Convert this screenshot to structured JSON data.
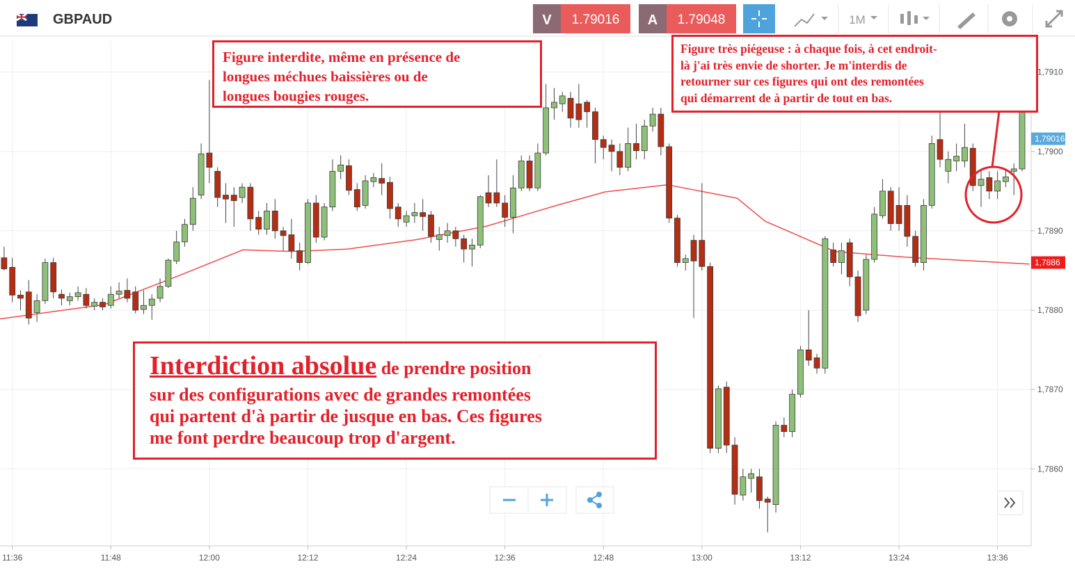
{
  "header": {
    "symbol": "GBPAUD",
    "sell_label": "V",
    "sell_price": "1.79016",
    "buy_label": "A",
    "buy_price": "1.79048",
    "timeframe": "1M"
  },
  "annotations": {
    "top_left": [
      "Figure interdite, même en présence de",
      "longues méchues baissières ou de",
      "longues bougies rouges."
    ],
    "top_right": [
      "Figure très piégeuse : à chaque fois, à cet endroit-",
      "là j'ai très envie de shorter. Je m'interdis de",
      "retourner sur ces figures qui ont des remontées",
      "qui démarrent de à partir de tout  en  bas."
    ],
    "bottom": {
      "emphasis": "Interdiction absolue",
      "lines": [
        "de prendre position",
        "sur des configurations avec de grandes remontées",
        "qui partent d'à partir de jusque en bas. Ces figures",
        "me font perdre beaucoup trop d'argent."
      ]
    }
  },
  "chart_data": {
    "type": "candlestick",
    "up_color": "#8fc07a",
    "down_color": "#b52d12",
    "grid": true,
    "xlim": [
      694.5,
      820.1
    ],
    "ylim": [
      1.78503,
      1.7914
    ],
    "xticks": [
      {
        "value": 696,
        "label": "11:36"
      },
      {
        "value": 708,
        "label": "11:48"
      },
      {
        "value": 720,
        "label": "12:00"
      },
      {
        "value": 732,
        "label": "12:12"
      },
      {
        "value": 744,
        "label": "12:24"
      },
      {
        "value": 756,
        "label": "12:36"
      },
      {
        "value": 768,
        "label": "12:48"
      },
      {
        "value": 780,
        "label": "13:00"
      },
      {
        "value": 792,
        "label": "13:12"
      },
      {
        "value": 804,
        "label": "13:24"
      },
      {
        "value": 816,
        "label": "13:36"
      }
    ],
    "yticks": [
      {
        "value": 1.791,
        "label": "1,7910"
      },
      {
        "value": 1.79,
        "label": "1,7900"
      },
      {
        "value": 1.789,
        "label": "1,7890"
      },
      {
        "value": 1.788,
        "label": "1,7880"
      },
      {
        "value": 1.787,
        "label": "1,7870"
      },
      {
        "value": 1.786,
        "label": "1,7860"
      }
    ],
    "x": [
      695,
      696,
      697,
      698,
      699,
      700,
      701,
      702,
      703,
      704,
      705,
      706,
      707,
      708,
      709,
      710,
      711,
      712,
      713,
      714,
      715,
      716,
      717,
      718,
      719,
      720,
      721,
      722,
      723,
      724,
      725,
      726,
      727,
      728,
      729,
      730,
      731,
      732,
      733,
      734,
      735,
      736,
      737,
      738,
      739,
      740,
      741,
      742,
      743,
      744,
      745,
      746,
      747,
      748,
      749,
      750,
      751,
      752,
      753,
      754,
      755,
      756,
      757,
      758,
      759,
      760,
      761,
      762,
      763,
      764,
      765,
      766,
      767,
      768,
      769,
      770,
      771,
      772,
      773,
      774,
      775,
      776,
      777,
      778,
      779,
      780,
      781,
      782,
      783,
      784,
      785,
      786,
      787,
      788,
      789,
      790,
      791,
      792,
      793,
      794,
      795,
      796,
      797,
      798,
      799,
      800,
      801,
      802,
      803,
      804,
      805,
      806,
      807,
      808,
      809,
      810,
      811,
      812,
      813,
      814,
      815,
      816,
      817,
      818,
      819
    ],
    "open": [
      1.78866,
      1.78854,
      1.78819,
      1.78823,
      1.78797,
      1.78812,
      1.7886,
      1.7882,
      1.78812,
      1.78817,
      1.7882,
      1.78805,
      1.7881,
      1.78806,
      1.7882,
      1.78825,
      1.78823,
      1.78801,
      1.78806,
      1.78815,
      1.7883,
      1.78862,
      1.78886,
      1.78908,
      1.78945,
      1.78998,
      1.78975,
      1.78945,
      1.78945,
      1.78942,
      1.78955,
      1.78917,
      1.78902,
      1.78925,
      1.789,
      1.78895,
      1.78875,
      1.7886,
      1.78935,
      1.78892,
      1.7893,
      1.78975,
      1.78982,
      1.78952,
      1.78932,
      1.78962,
      1.78966,
      1.78961,
      1.7893,
      1.78911,
      1.78919,
      1.78923,
      1.7892,
      1.78889,
      1.78894,
      1.789,
      1.7889,
      1.78877,
      1.78882,
      1.78948,
      1.78948,
      1.78935,
      1.78917,
      1.78954,
      1.78988,
      1.78954,
      1.78998,
      1.79055,
      1.7906,
      1.79067,
      1.7906,
      1.79062,
      1.7905,
      1.79015,
      1.79008,
      1.79,
      1.7898,
      1.7901,
      1.79001,
      1.79032,
      1.79047,
      1.79006,
      1.78916,
      1.7886,
      1.78888,
      1.78888,
      1.78855,
      1.78626,
      1.78703,
      1.7863,
      1.78567,
      1.78588,
      1.7859,
      1.78562,
      1.78555,
      1.78655,
      1.78647,
      1.78694,
      1.7875,
      1.7874,
      1.78727,
      1.78876,
      1.7886,
      1.78885,
      1.78842,
      1.788,
      1.78864,
      1.78919,
      1.7895,
      1.78932,
      1.78932,
      1.78893,
      1.7886,
      1.78932,
      1.79015,
      1.78975,
      1.78988,
      1.78988,
      1.79004,
      1.78957,
      1.78967,
      1.7895,
      1.78962,
      1.78975,
      1.78978
    ],
    "high": [
      1.7888,
      1.78866,
      1.78825,
      1.78838,
      1.7882,
      1.78865,
      1.78866,
      1.78826,
      1.78822,
      1.7883,
      1.78828,
      1.78815,
      1.78815,
      1.7883,
      1.78835,
      1.7884,
      1.7883,
      1.78825,
      1.7882,
      1.7884,
      1.78865,
      1.789,
      1.78915,
      1.78955,
      1.7901,
      1.7909,
      1.7898,
      1.7896,
      1.78955,
      1.7896,
      1.7896,
      1.78925,
      1.78935,
      1.7894,
      1.78905,
      1.78915,
      1.78885,
      1.7894,
      1.78945,
      1.78935,
      1.7899,
      1.78995,
      1.7899,
      1.7896,
      1.7897,
      1.78973,
      1.78985,
      1.78968,
      1.78935,
      1.78925,
      1.78935,
      1.7894,
      1.78925,
      1.78905,
      1.7891,
      1.78905,
      1.78895,
      1.7889,
      1.78945,
      1.7897,
      1.7899,
      1.78945,
      1.7897,
      1.78995,
      1.78995,
      1.7901,
      1.79085,
      1.7908,
      1.79075,
      1.79075,
      1.79085,
      1.79065,
      1.79055,
      1.7902,
      1.79015,
      1.7901,
      1.7903,
      1.79035,
      1.7904,
      1.79055,
      1.79055,
      1.7901,
      1.7892,
      1.7887,
      1.78895,
      1.7896,
      1.7886,
      1.78705,
      1.7871,
      1.7864,
      1.786,
      1.786,
      1.786,
      1.78565,
      1.7866,
      1.78665,
      1.787,
      1.78755,
      1.788,
      1.78745,
      1.78893,
      1.78885,
      1.78885,
      1.7889,
      1.7885,
      1.7887,
      1.7893,
      1.78965,
      1.78955,
      1.78955,
      1.78945,
      1.789,
      1.7894,
      1.7902,
      1.79055,
      1.79,
      1.7901,
      1.79035,
      1.7901,
      1.78975,
      1.78975,
      1.78975,
      1.78978,
      1.78985,
      1.79065
    ],
    "low": [
      1.7885,
      1.7881,
      1.788,
      1.78782,
      1.78785,
      1.78808,
      1.78815,
      1.78806,
      1.78806,
      1.78812,
      1.78802,
      1.788,
      1.788,
      1.78802,
      1.78815,
      1.7881,
      1.78796,
      1.78795,
      1.78788,
      1.7881,
      1.78828,
      1.78858,
      1.7888,
      1.789,
      1.7894,
      1.7896,
      1.7893,
      1.7891,
      1.78905,
      1.78935,
      1.789,
      1.78895,
      1.78895,
      1.7889,
      1.78875,
      1.78865,
      1.7885,
      1.78858,
      1.78885,
      1.78888,
      1.78925,
      1.78965,
      1.78945,
      1.78925,
      1.78928,
      1.78955,
      1.78945,
      1.78915,
      1.78905,
      1.78905,
      1.7891,
      1.789,
      1.78885,
      1.78875,
      1.78885,
      1.7888,
      1.7886,
      1.78855,
      1.78878,
      1.7893,
      1.7893,
      1.78905,
      1.78897,
      1.7895,
      1.7895,
      1.7895,
      1.78995,
      1.7904,
      1.7905,
      1.7903,
      1.7903,
      1.7903,
      1.78985,
      1.7899,
      1.78975,
      1.7897,
      1.78975,
      1.7899,
      1.7899,
      1.79025,
      1.78995,
      1.7891,
      1.78855,
      1.7885,
      1.7879,
      1.7885,
      1.7862,
      1.7862,
      1.7862,
      1.78555,
      1.7856,
      1.7857,
      1.7855,
      1.7852,
      1.78545,
      1.7864,
      1.7864,
      1.7869,
      1.7873,
      1.7872,
      1.7872,
      1.78855,
      1.78845,
      1.7883,
      1.78785,
      1.78795,
      1.7886,
      1.78915,
      1.789,
      1.789,
      1.7888,
      1.78855,
      1.7885,
      1.78928,
      1.7898,
      1.7896,
      1.78975,
      1.7898,
      1.7895,
      1.7893,
      1.7894,
      1.7894,
      1.78955,
      1.78945,
      1.78975
    ],
    "close": [
      1.78852,
      1.78819,
      1.78815,
      1.7879,
      1.78812,
      1.7886,
      1.78823,
      1.78815,
      1.78817,
      1.78822,
      1.78806,
      1.7881,
      1.78804,
      1.7882,
      1.78824,
      1.78815,
      1.788,
      1.78806,
      1.78814,
      1.7883,
      1.78863,
      1.78886,
      1.78908,
      1.78941,
      1.78997,
      1.7898,
      1.78942,
      1.7894,
      1.78938,
      1.78955,
      1.78915,
      1.78902,
      1.78925,
      1.789,
      1.78894,
      1.78875,
      1.7886,
      1.78935,
      1.78892,
      1.7893,
      1.78975,
      1.78983,
      1.78951,
      1.7893,
      1.78963,
      1.78967,
      1.7896,
      1.78928,
      1.78915,
      1.78919,
      1.78923,
      1.78918,
      1.78893,
      1.78895,
      1.789,
      1.7889,
      1.78877,
      1.78882,
      1.78943,
      1.78935,
      1.78935,
      1.78917,
      1.78954,
      1.78988,
      1.78954,
      1.78998,
      1.79055,
      1.79062,
      1.7907,
      1.79042,
      1.7904,
      1.7905,
      1.79015,
      1.79005,
      1.79,
      1.7898,
      1.7901,
      1.79001,
      1.79032,
      1.79047,
      1.79006,
      1.78916,
      1.7886,
      1.78865,
      1.78862,
      1.78855,
      1.78626,
      1.78701,
      1.7863,
      1.78568,
      1.7859,
      1.78594,
      1.7856,
      1.78558,
      1.78655,
      1.78647,
      1.78694,
      1.7875,
      1.78737,
      1.78727,
      1.7889,
      1.7886,
      1.78875,
      1.78842,
      1.78793,
      1.78864,
      1.78921,
      1.7895,
      1.78909,
      1.78909,
      1.78893,
      1.7886,
      1.78932,
      1.7901,
      1.7899,
      1.7899,
      1.78994,
      1.79005,
      1.78957,
      1.78965,
      1.7895,
      1.78963,
      1.78968,
      1.78978,
      1.7906
    ],
    "moving_average": {
      "color": "#f04a4a",
      "x": [
        694.5,
        707.2,
        715.7,
        724.1,
        730.1,
        736.8,
        745.3,
        753.8,
        762.3,
        768.2,
        775.8,
        784.3,
        787.7,
        796.2,
        804.6,
        813.1,
        819.9
      ],
      "values": [
        1.78789,
        1.78807,
        1.78841,
        1.78876,
        1.78874,
        1.78877,
        1.78889,
        1.78906,
        1.78932,
        1.78949,
        1.78958,
        1.78941,
        1.78912,
        1.78874,
        1.78867,
        1.78862,
        1.78858
      ]
    },
    "price_badges": [
      {
        "value": 1.79016,
        "label": "1,79016",
        "color": "#5aa9dc"
      },
      {
        "value": 1.7886,
        "label": "1,7886",
        "color": "#ee1c1c"
      }
    ]
  }
}
